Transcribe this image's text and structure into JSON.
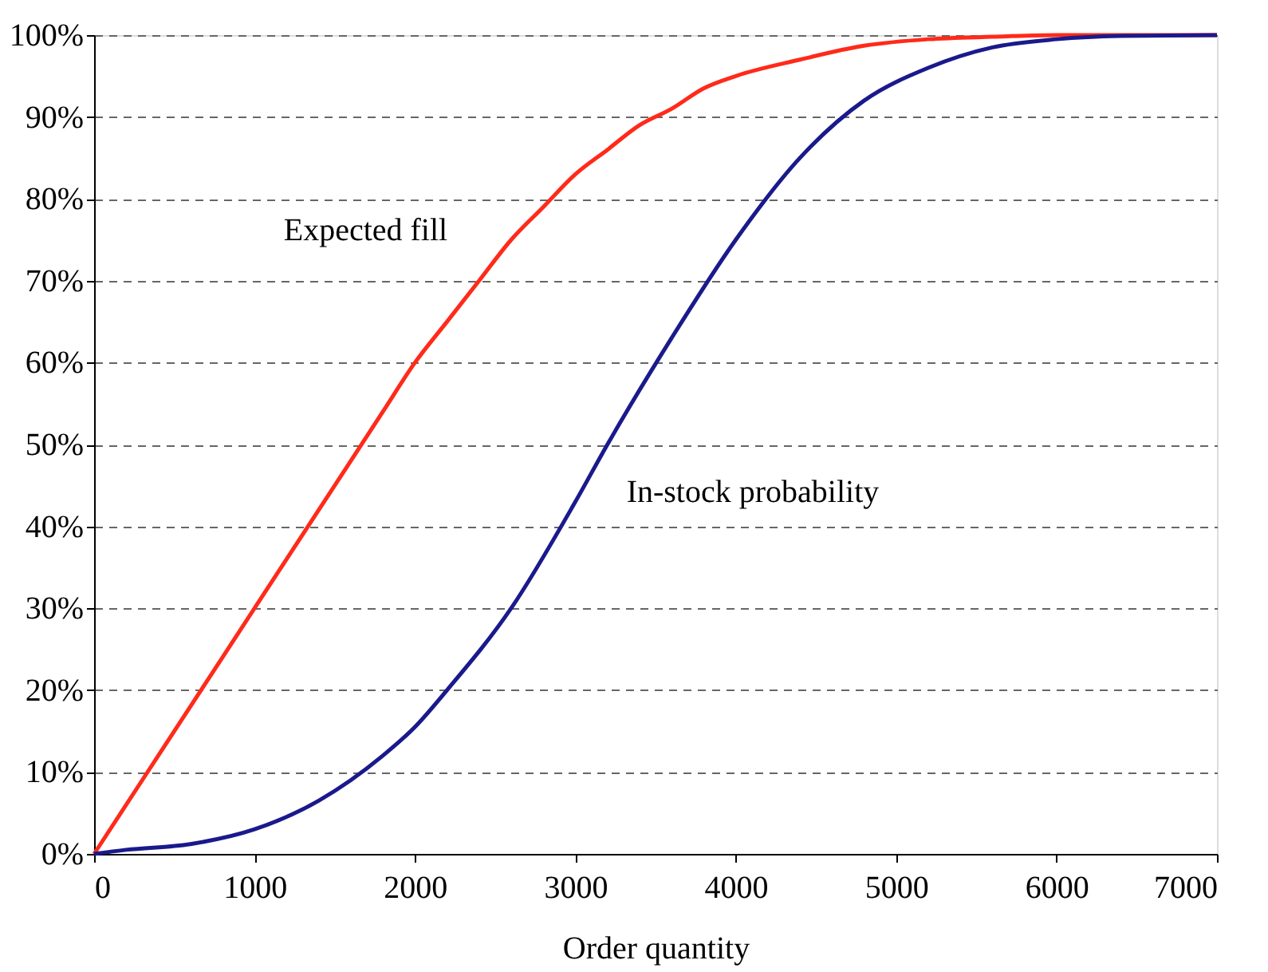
{
  "chart_data": {
    "type": "line",
    "xlabel": "Order quantity",
    "xlim": [
      0,
      7000
    ],
    "xticks": [
      0,
      1000,
      2000,
      3000,
      4000,
      5000,
      6000,
      7000
    ],
    "ylim": [
      0,
      100
    ],
    "yticks": [
      {
        "value": 0,
        "label": "0%"
      },
      {
        "value": 10,
        "label": "10%"
      },
      {
        "value": 20,
        "label": "20%"
      },
      {
        "value": 30,
        "label": "30%"
      },
      {
        "value": 40,
        "label": "40%"
      },
      {
        "value": 50,
        "label": "50%"
      },
      {
        "value": 60,
        "label": "60%"
      },
      {
        "value": 70,
        "label": "70%"
      },
      {
        "value": 80,
        "label": "80%"
      },
      {
        "value": 90,
        "label": "90%"
      },
      {
        "value": 100,
        "label": "100%"
      }
    ],
    "grid": "y",
    "legend": false,
    "line_style": "solid",
    "marker": "none",
    "series": [
      {
        "name": "Expected fill",
        "color": "#ff2a1a",
        "x": [
          0,
          200,
          400,
          600,
          800,
          1000,
          1200,
          1400,
          1600,
          1800,
          2000,
          2200,
          2400,
          2600,
          2800,
          3000,
          3200,
          3400,
          3600,
          3800,
          4000,
          4400,
          4800,
          5200,
          5600,
          6000,
          6400,
          7000
        ],
        "values": [
          0,
          6,
          12,
          18,
          24,
          30,
          36,
          42,
          48,
          54,
          60,
          65,
          70,
          75,
          79,
          83,
          86,
          89,
          91,
          93.5,
          95,
          97,
          98.7,
          99.5,
          99.8,
          100,
          100,
          100
        ]
      },
      {
        "name": "In-stock probability",
        "color": "#1a1a8c",
        "x": [
          0,
          200,
          600,
          1000,
          1400,
          1800,
          2000,
          2200,
          2600,
          3000,
          3200,
          3600,
          4000,
          4400,
          4800,
          5200,
          5600,
          6000,
          6400,
          7000
        ],
        "values": [
          0,
          0.5,
          1.2,
          3,
          6.5,
          12,
          15.5,
          20,
          30,
          43,
          50,
          63,
          75,
          85,
          92,
          96,
          98.5,
          99.5,
          99.9,
          100
        ]
      }
    ]
  }
}
